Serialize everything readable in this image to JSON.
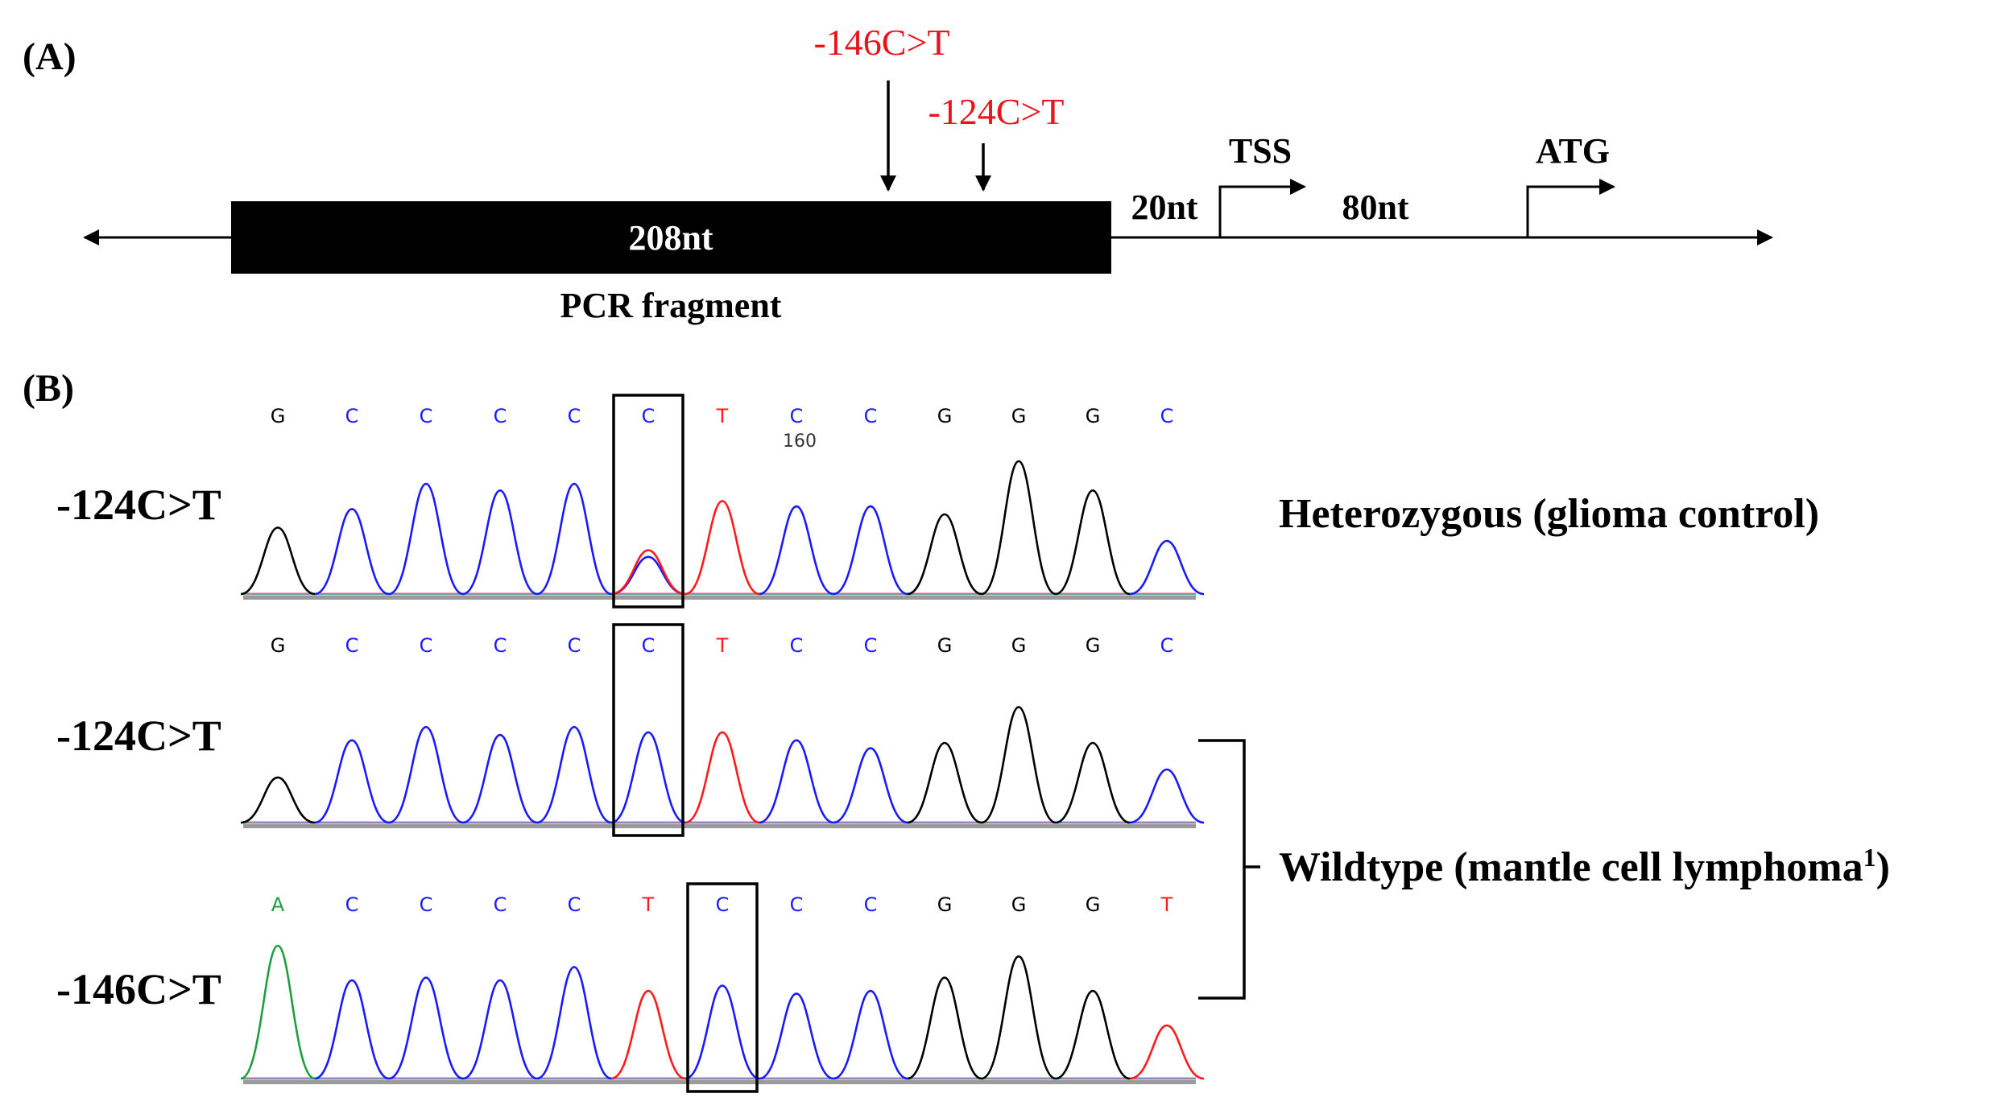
{
  "panelA": {
    "label": "(A)",
    "mutation1": "-146C>T",
    "mutation2": "-124C>T",
    "fragment_length": "208nt",
    "fragment_caption": "PCR fragment",
    "spacer1": "20nt",
    "tss": "TSS",
    "spacer2": "80nt",
    "atg": "ATG"
  },
  "panelB": {
    "label": "(B)",
    "colors": {
      "A": "#1e9e3e",
      "C": "#1a1aff",
      "G": "#000000",
      "T": "#ff1a1a"
    },
    "genotype_het": "Heterozygous (glioma control)",
    "genotype_wt": "Wildtype (mantle cell lymphoma",
    "genotype_wt_sup": "1",
    "genotype_wt_close": ")",
    "rows": [
      {
        "label": "-124C>T",
        "bases": [
          "G",
          "C",
          "C",
          "C",
          "C",
          "C",
          "T",
          "C",
          "C",
          "G",
          "G",
          "G",
          "C"
        ],
        "position_marker": "160",
        "highlight_index": 5,
        "heights": [
          0.5,
          0.64,
          0.83,
          0.78,
          0.83,
          0.28,
          0.7,
          0.66,
          0.66,
          0.6,
          1.0,
          0.78,
          0.4
        ],
        "overlap": {
          "index": 5,
          "base": "T",
          "height": 0.33
        }
      },
      {
        "label": "-124C>T",
        "bases": [
          "G",
          "C",
          "C",
          "C",
          "C",
          "C",
          "T",
          "C",
          "C",
          "G",
          "G",
          "G",
          "C"
        ],
        "highlight_index": 5,
        "heights": [
          0.34,
          0.62,
          0.72,
          0.66,
          0.72,
          0.68,
          0.68,
          0.62,
          0.56,
          0.6,
          0.87,
          0.6,
          0.4
        ]
      },
      {
        "label": "-146C>T",
        "bases": [
          "A",
          "C",
          "C",
          "C",
          "C",
          "T",
          "C",
          "C",
          "C",
          "G",
          "G",
          "G",
          "T"
        ],
        "highlight_index": 6,
        "heights": [
          1.0,
          0.74,
          0.76,
          0.74,
          0.84,
          0.66,
          0.7,
          0.64,
          0.66,
          0.76,
          0.92,
          0.66,
          0.4
        ]
      }
    ]
  }
}
